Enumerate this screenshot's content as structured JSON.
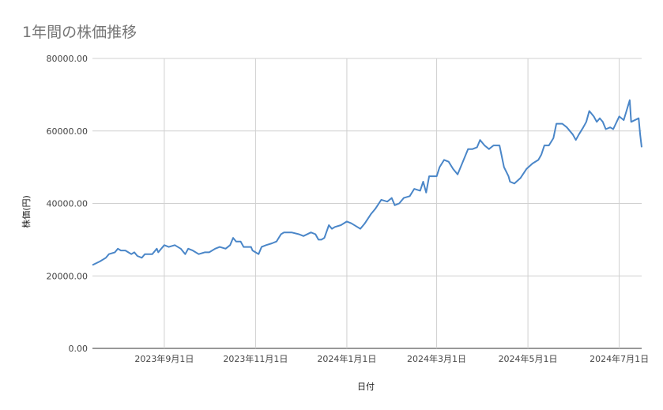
{
  "chart_data": {
    "type": "line",
    "title": "1年間の株価推移",
    "xlabel": "日付",
    "ylabel": "株価(円)",
    "ylim": [
      0,
      80000
    ],
    "yticks": [
      "0.00",
      "20000.00",
      "40000.00",
      "60000.00",
      "80000.00"
    ],
    "xticks": [
      "2023年9月1日",
      "2023年11月1日",
      "2024年1月1日",
      "2024年3月1日",
      "2024年5月1日",
      "2024年7月1日"
    ],
    "grid": true,
    "legend": "none",
    "line_color": "#4a86c8",
    "series": [
      {
        "points": [
          [
            "2023-07-15",
            23000
          ],
          [
            "2023-07-20",
            24000
          ],
          [
            "2023-07-24",
            25000
          ],
          [
            "2023-07-26",
            26000
          ],
          [
            "2023-07-30",
            26500
          ],
          [
            "2023-08-01",
            27500
          ],
          [
            "2023-08-03",
            27000
          ],
          [
            "2023-08-06",
            27000
          ],
          [
            "2023-08-08",
            26500
          ],
          [
            "2023-08-10",
            26000
          ],
          [
            "2023-08-12",
            26500
          ],
          [
            "2023-08-14",
            25500
          ],
          [
            "2023-08-17",
            25000
          ],
          [
            "2023-08-19",
            26000
          ],
          [
            "2023-08-24",
            26000
          ],
          [
            "2023-08-27",
            27500
          ],
          [
            "2023-08-28",
            26500
          ],
          [
            "2023-08-30",
            27500
          ],
          [
            "2023-09-01",
            28500
          ],
          [
            "2023-09-04",
            28000
          ],
          [
            "2023-09-08",
            28500
          ],
          [
            "2023-09-12",
            27500
          ],
          [
            "2023-09-15",
            26000
          ],
          [
            "2023-09-17",
            27500
          ],
          [
            "2023-09-20",
            27000
          ],
          [
            "2023-09-24",
            26000
          ],
          [
            "2023-09-28",
            26500
          ],
          [
            "2023-10-01",
            26500
          ],
          [
            "2023-10-05",
            27500
          ],
          [
            "2023-10-08",
            28000
          ],
          [
            "2023-10-12",
            27500
          ],
          [
            "2023-10-15",
            28500
          ],
          [
            "2023-10-17",
            30500
          ],
          [
            "2023-10-19",
            29500
          ],
          [
            "2023-10-22",
            29500
          ],
          [
            "2023-10-24",
            28000
          ],
          [
            "2023-10-27",
            28000
          ],
          [
            "2023-10-29",
            28000
          ],
          [
            "2023-10-30",
            27000
          ],
          [
            "2023-11-01",
            26500
          ],
          [
            "2023-11-03",
            26000
          ],
          [
            "2023-11-05",
            28000
          ],
          [
            "2023-11-08",
            28500
          ],
          [
            "2023-11-12",
            29000
          ],
          [
            "2023-11-15",
            29500
          ],
          [
            "2023-11-18",
            31500
          ],
          [
            "2023-11-20",
            32000
          ],
          [
            "2023-11-25",
            32000
          ],
          [
            "2023-11-30",
            31500
          ],
          [
            "2023-12-03",
            31000
          ],
          [
            "2023-12-08",
            32000
          ],
          [
            "2023-12-11",
            31500
          ],
          [
            "2023-12-13",
            30000
          ],
          [
            "2023-12-15",
            30000
          ],
          [
            "2023-12-17",
            30500
          ],
          [
            "2023-12-20",
            34000
          ],
          [
            "2023-12-22",
            33000
          ],
          [
            "2023-12-24",
            33500
          ],
          [
            "2023-12-28",
            34000
          ],
          [
            "2024-01-01",
            35000
          ],
          [
            "2024-01-04",
            34500
          ],
          [
            "2024-01-08",
            33500
          ],
          [
            "2024-01-10",
            33000
          ],
          [
            "2024-01-13",
            34500
          ],
          [
            "2024-01-17",
            37000
          ],
          [
            "2024-01-20",
            38500
          ],
          [
            "2024-01-24",
            41000
          ],
          [
            "2024-01-28",
            40500
          ],
          [
            "2024-01-31",
            41500
          ],
          [
            "2024-02-02",
            39500
          ],
          [
            "2024-02-05",
            40000
          ],
          [
            "2024-02-08",
            41500
          ],
          [
            "2024-02-12",
            42000
          ],
          [
            "2024-02-15",
            44000
          ],
          [
            "2024-02-19",
            43500
          ],
          [
            "2024-02-21",
            46000
          ],
          [
            "2024-02-23",
            43000
          ],
          [
            "2024-02-25",
            47500
          ],
          [
            "2024-03-01",
            47500
          ],
          [
            "2024-03-03",
            50000
          ],
          [
            "2024-03-06",
            52000
          ],
          [
            "2024-03-09",
            51500
          ],
          [
            "2024-03-12",
            49500
          ],
          [
            "2024-03-15",
            48000
          ],
          [
            "2024-03-18",
            51000
          ],
          [
            "2024-03-22",
            55000
          ],
          [
            "2024-03-25",
            55000
          ],
          [
            "2024-03-28",
            55500
          ],
          [
            "2024-03-30",
            57500
          ],
          [
            "2024-04-02",
            56000
          ],
          [
            "2024-04-05",
            55000
          ],
          [
            "2024-04-08",
            56000
          ],
          [
            "2024-04-12",
            56000
          ],
          [
            "2024-04-15",
            50000
          ],
          [
            "2024-04-18",
            47500
          ],
          [
            "2024-04-19",
            46000
          ],
          [
            "2024-04-22",
            45500
          ],
          [
            "2024-04-26",
            47000
          ],
          [
            "2024-04-30",
            49500
          ],
          [
            "2024-05-04",
            51000
          ],
          [
            "2024-05-08",
            52000
          ],
          [
            "2024-05-10",
            53500
          ],
          [
            "2024-05-12",
            56000
          ],
          [
            "2024-05-15",
            56000
          ],
          [
            "2024-05-18",
            58000
          ],
          [
            "2024-05-20",
            62000
          ],
          [
            "2024-05-24",
            62000
          ],
          [
            "2024-05-27",
            61000
          ],
          [
            "2024-05-31",
            59000
          ],
          [
            "2024-06-02",
            57500
          ],
          [
            "2024-06-04",
            59000
          ],
          [
            "2024-06-07",
            61000
          ],
          [
            "2024-06-09",
            62500
          ],
          [
            "2024-06-11",
            65500
          ],
          [
            "2024-06-14",
            64000
          ],
          [
            "2024-06-16",
            62500
          ],
          [
            "2024-06-18",
            63500
          ],
          [
            "2024-06-20",
            62500
          ],
          [
            "2024-06-22",
            60500
          ],
          [
            "2024-06-25",
            61000
          ],
          [
            "2024-06-27",
            60500
          ],
          [
            "2024-07-01",
            64000
          ],
          [
            "2024-07-04",
            63000
          ],
          [
            "2024-07-08",
            68500
          ],
          [
            "2024-07-09",
            62500
          ],
          [
            "2024-07-14",
            63500
          ],
          [
            "2024-07-15",
            59000
          ],
          [
            "2024-07-16",
            55500
          ]
        ]
      }
    ]
  }
}
